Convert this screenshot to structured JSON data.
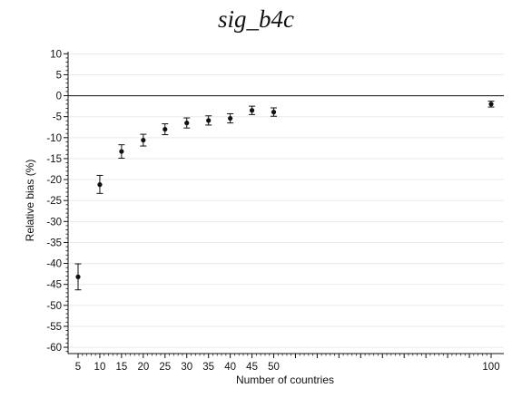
{
  "chart_data": {
    "type": "scatter",
    "title": "sig_b4c",
    "xlabel": "Number of countries",
    "ylabel": "Relative bias (%)",
    "x_ticks": [
      5,
      10,
      15,
      20,
      25,
      30,
      35,
      40,
      45,
      50,
      100
    ],
    "y_ticks": [
      10,
      5,
      0,
      -5,
      -10,
      -15,
      -20,
      -25,
      -30,
      -35,
      -40,
      -45,
      -50,
      -55,
      -60
    ],
    "xlim": [
      5,
      100
    ],
    "ylim": [
      -61.5,
      10.5
    ],
    "grid": "horizontal",
    "reference_line_y": 0,
    "points": [
      {
        "x": 5,
        "y": -43.2,
        "ci_low": -46.3,
        "ci_high": -40.1
      },
      {
        "x": 10,
        "y": -21.2,
        "ci_low": -23.3,
        "ci_high": -19.0
      },
      {
        "x": 15,
        "y": -13.3,
        "ci_low": -14.9,
        "ci_high": -11.7
      },
      {
        "x": 20,
        "y": -10.6,
        "ci_low": -12.0,
        "ci_high": -9.2
      },
      {
        "x": 25,
        "y": -8.0,
        "ci_low": -9.3,
        "ci_high": -6.7
      },
      {
        "x": 30,
        "y": -6.5,
        "ci_low": -7.7,
        "ci_high": -5.3
      },
      {
        "x": 35,
        "y": -5.9,
        "ci_low": -7.0,
        "ci_high": -4.8
      },
      {
        "x": 40,
        "y": -5.4,
        "ci_low": -6.5,
        "ci_high": -4.3
      },
      {
        "x": 45,
        "y": -3.5,
        "ci_low": -4.5,
        "ci_high": -2.5
      },
      {
        "x": 50,
        "y": -3.9,
        "ci_low": -4.9,
        "ci_high": -2.9
      },
      {
        "x": 100,
        "y": -2.0,
        "ci_low": -2.7,
        "ci_high": -1.3
      }
    ]
  }
}
